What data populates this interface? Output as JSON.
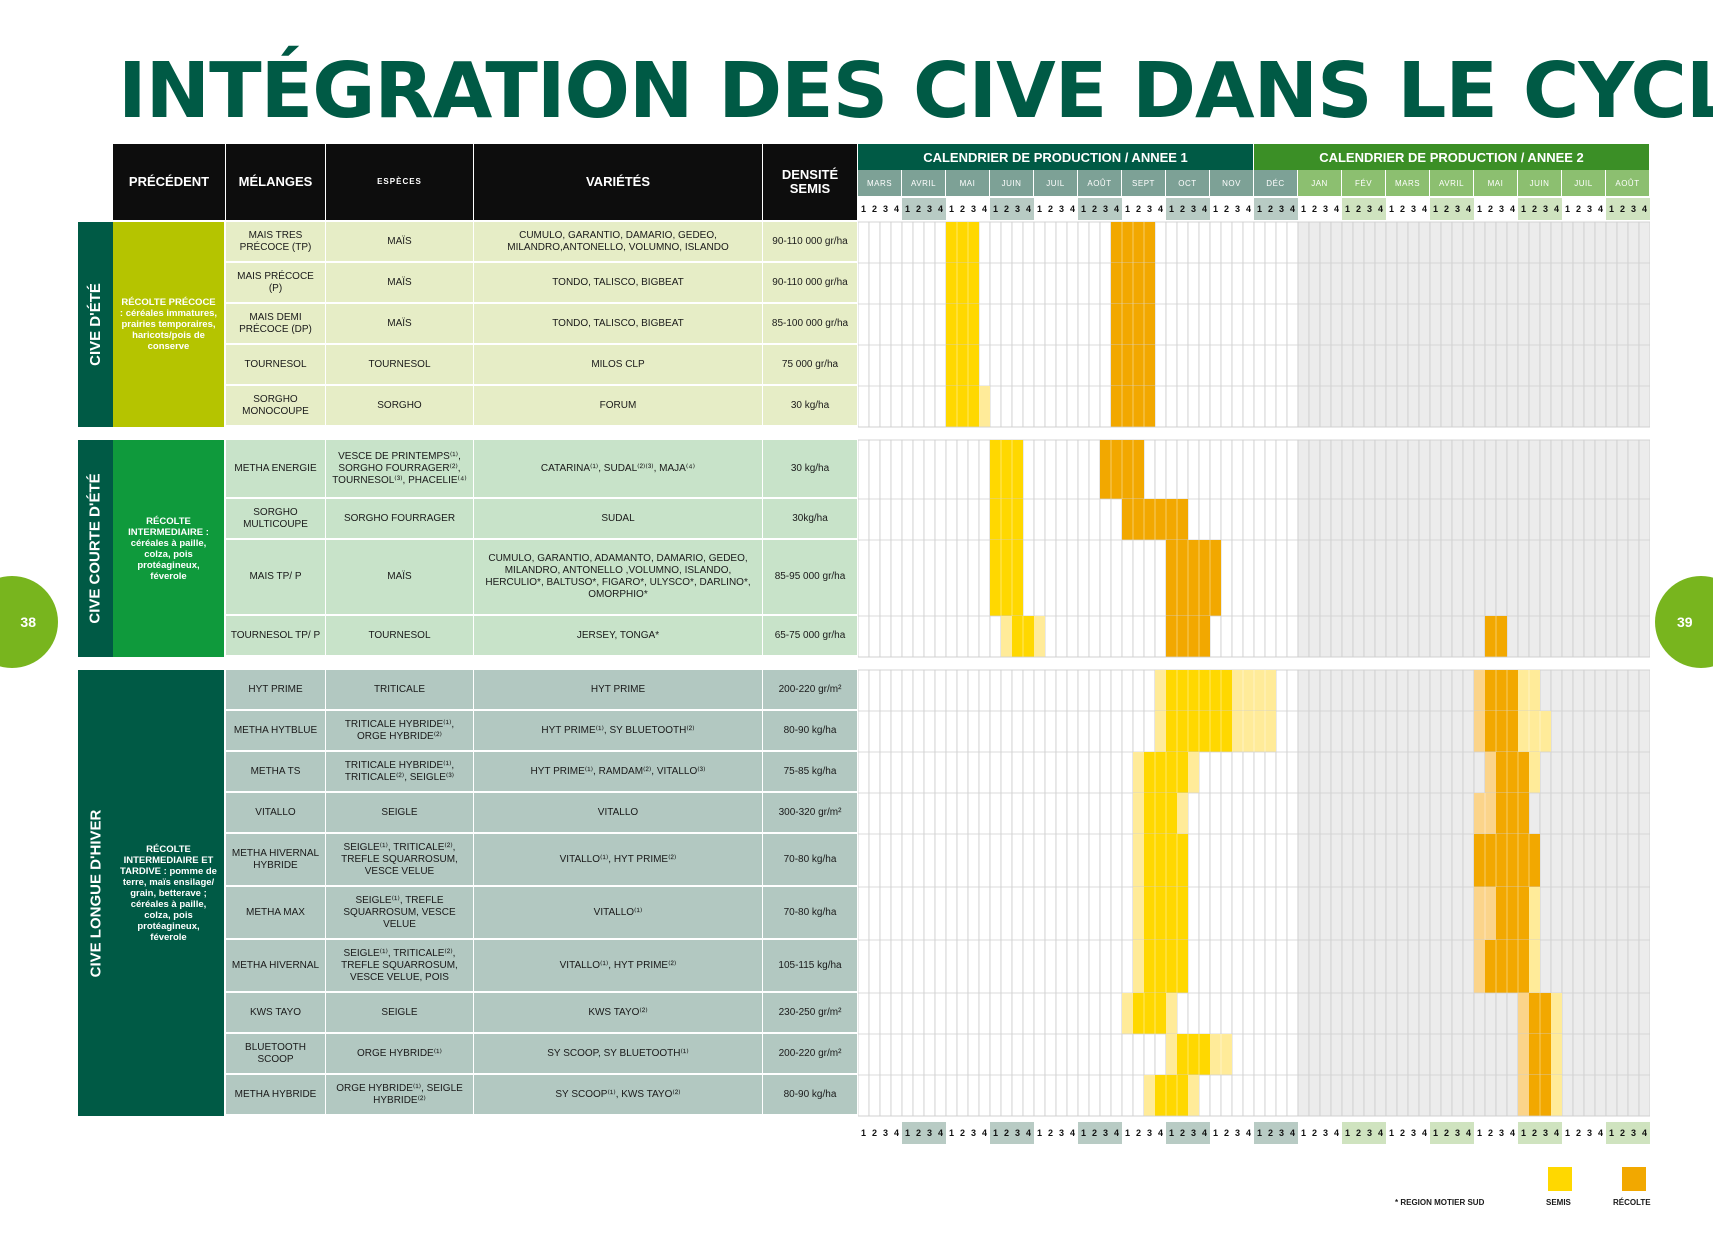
{
  "title": "INTÉGRATION DES CIVE DANS LE CYCLE",
  "page_left": "38",
  "page_right": "39",
  "headers": {
    "precedent": "PRÉCÉDENT",
    "melanges": "MÉLANGES",
    "especes": "ESPÈCES",
    "varietes": "VARIÉTÉS",
    "densite": "DENSITÉ SEMIS",
    "annee1": "CALENDRIER  DE PRODUCTION / ANNEE 1",
    "annee2": "CALENDRIER DE PRODUCTION / ANNEE 2"
  },
  "months_year1": [
    "MARS",
    "AVRIL",
    "MAI",
    "JUIN",
    "JUIL",
    "AOÛT",
    "SEPT",
    "OCT",
    "NOV",
    "DÉC"
  ],
  "months_year2": [
    "JAN",
    "FÉV",
    "MARS",
    "AVRIL",
    "MAI",
    "JUIN",
    "JUIL",
    "AOÛT"
  ],
  "week_labels": [
    "1",
    "2",
    "3",
    "4"
  ],
  "colors": {
    "semis": "#ffd800",
    "recolte": "#f2a800",
    "semis_light": "#ffeb99",
    "recolte_light": "#fbd48a",
    "title_green": "#005a45",
    "annee1_header": "#005a45",
    "annee2_header": "#3b8f26"
  },
  "sections": [
    {
      "band": "CIVE D'ÉTÉ",
      "band_color": "#005a45",
      "precedent_color": "#b5c400",
      "row_color": "#e6edc6",
      "precedent": "RÉCOLTE PRÉCOCE : céréales immatures, prairies temporaires, haricots/pois de conserve",
      "rows": [
        {
          "melange": "MAIS TRES PRÉCOCE (TP)",
          "espece": "MAÏS",
          "varietes": "CUMULO, GARANTIO, DAMARIO, GEDEO, MILANDRO,ANTONELLO, VOLUMNO, ISLANDO",
          "densite": "90-110 000 gr/ha",
          "bars": [
            {
              "type": "semis",
              "start": 8,
              "end": 11
            },
            {
              "type": "recolte",
              "start": 23,
              "end": 27
            }
          ]
        },
        {
          "melange": "MAIS PRÉCOCE (P)",
          "espece": "MAÏS",
          "varietes": "TONDO, TALISCO, BIGBEAT",
          "densite": "90-110 000 gr/ha",
          "bars": [
            {
              "type": "semis",
              "start": 8,
              "end": 11
            },
            {
              "type": "recolte",
              "start": 23,
              "end": 27
            }
          ]
        },
        {
          "melange": "MAIS DEMI PRÉCOCE (DP)",
          "espece": "MAÏS",
          "varietes": "TONDO, TALISCO, BIGBEAT",
          "densite": "85-100 000 gr/ha",
          "bars": [
            {
              "type": "semis",
              "start": 8,
              "end": 11
            },
            {
              "type": "recolte",
              "start": 23,
              "end": 27
            }
          ]
        },
        {
          "melange": "TOURNESOL",
          "espece": "TOURNESOL",
          "varietes": "MILOS CLP",
          "densite": "75 000 gr/ha",
          "bars": [
            {
              "type": "semis",
              "start": 8,
              "end": 11
            },
            {
              "type": "recolte",
              "start": 23,
              "end": 27
            }
          ]
        },
        {
          "melange": "SORGHO MONOCOUPE",
          "espece": "SORGHO",
          "varietes": "FORUM",
          "densite": "30 kg/ha",
          "bars": [
            {
              "type": "semis",
              "start": 8,
              "end": 11
            },
            {
              "type": "semis_light",
              "start": 11,
              "end": 12
            },
            {
              "type": "recolte",
              "start": 23,
              "end": 27
            }
          ]
        }
      ]
    },
    {
      "band": "CIVE COURTE D'ÉTÉ",
      "band_color": "#005a45",
      "precedent_color": "#0f9a3c",
      "row_color": "#c8e3c9",
      "precedent": "RÉCOLTE INTERMEDIAIRE : céréales à paille, colza, pois protéagineux, féverole",
      "rows": [
        {
          "melange": "METHA ENERGIE",
          "espece": "VESCE DE PRINTEMPS⁽¹⁾, SORGHO FOURRAGER⁽²⁾, TOURNESOL⁽³⁾, PHACELIE⁽⁴⁾",
          "varietes": "CATARINA⁽¹⁾, SUDAL⁽²⁾⁽³⁾, MAJA⁽⁴⁾",
          "densite": "30 kg/ha",
          "bars": [
            {
              "type": "semis",
              "start": 12,
              "end": 15
            },
            {
              "type": "recolte",
              "start": 22,
              "end": 26
            }
          ]
        },
        {
          "melange": "SORGHO MULTICOUPE",
          "espece": "SORGHO FOURRAGER",
          "varietes": "SUDAL",
          "densite": "30kg/ha",
          "bars": [
            {
              "type": "semis",
              "start": 12,
              "end": 15
            },
            {
              "type": "recolte",
              "start": 24,
              "end": 30
            }
          ]
        },
        {
          "melange": "MAIS TP/ P",
          "espece": "MAÏS",
          "varietes": "CUMULO, GARANTIO, ADAMANTO, DAMARIO, GEDEO, MILANDRO, ANTONELLO ,VOLUMNO, ISLANDO, HERCULIO*, BALTUSO*, FIGARO*, ULYSCO*, DARLINO*, OMORPHIO*",
          "densite": "85-95 000 gr/ha",
          "bars": [
            {
              "type": "semis",
              "start": 12,
              "end": 15
            },
            {
              "type": "recolte",
              "start": 28,
              "end": 33
            }
          ]
        },
        {
          "melange": "TOURNESOL TP/ P",
          "espece": "TOURNESOL",
          "varietes": "JERSEY, TONGA*",
          "densite": "65-75 000 gr/ha",
          "bars": [
            {
              "type": "semis_light",
              "start": 13,
              "end": 14
            },
            {
              "type": "semis",
              "start": 14,
              "end": 16
            },
            {
              "type": "semis_light",
              "start": 16,
              "end": 17
            },
            {
              "type": "recolte",
              "start": 28,
              "end": 32
            },
            {
              "type": "recolte",
              "start": 57,
              "end": 59
            }
          ]
        }
      ]
    },
    {
      "band": "CIVE LONGUE D'HIVER",
      "band_color": "#005a45",
      "precedent_color": "#005a45",
      "row_color": "#b2c8c1",
      "precedent": "RÉCOLTE INTERMEDIAIRE ET TARDIVE : pomme de terre, maïs ensilage/ grain, betterave ; céréales à paille, colza, pois protéagineux, féverole",
      "rows": [
        {
          "melange": "HYT PRIME",
          "espece": "TRITICALE",
          "varietes": "HYT PRIME",
          "densite": "200-220 gr/m²",
          "bars": [
            {
              "type": "semis_light",
              "start": 27,
              "end": 28
            },
            {
              "type": "semis",
              "start": 28,
              "end": 34
            },
            {
              "type": "semis_light",
              "start": 34,
              "end": 38
            },
            {
              "type": "recolte_light",
              "start": 56,
              "end": 57
            },
            {
              "type": "recolte",
              "start": 57,
              "end": 60
            },
            {
              "type": "semis_light",
              "start": 60,
              "end": 62
            }
          ]
        },
        {
          "melange": "METHA HYTBLUE",
          "espece": "TRITICALE HYBRIDE⁽¹⁾, ORGE HYBRIDE⁽²⁾",
          "varietes": "HYT PRIME⁽¹⁾, SY BLUETOOTH⁽²⁾",
          "densite": "80-90 kg/ha",
          "bars": [
            {
              "type": "semis_light",
              "start": 27,
              "end": 28
            },
            {
              "type": "semis",
              "start": 28,
              "end": 34
            },
            {
              "type": "semis_light",
              "start": 34,
              "end": 38
            },
            {
              "type": "recolte_light",
              "start": 56,
              "end": 57
            },
            {
              "type": "recolte",
              "start": 57,
              "end": 60
            },
            {
              "type": "semis_light",
              "start": 60,
              "end": 63
            }
          ]
        },
        {
          "melange": "METHA TS",
          "espece": "TRITICALE HYBRIDE⁽¹⁾, TRITICALE⁽²⁾, SEIGLE⁽³⁾",
          "varietes": "HYT PRIME⁽¹⁾, RAMDAM⁽²⁾, VITALLO⁽³⁾",
          "densite": "75-85 kg/ha",
          "bars": [
            {
              "type": "semis_light",
              "start": 25,
              "end": 26
            },
            {
              "type": "semis",
              "start": 26,
              "end": 30
            },
            {
              "type": "semis_light",
              "start": 30,
              "end": 31
            },
            {
              "type": "recolte_light",
              "start": 57,
              "end": 58
            },
            {
              "type": "recolte",
              "start": 58,
              "end": 61
            },
            {
              "type": "semis_light",
              "start": 61,
              "end": 62
            }
          ]
        },
        {
          "melange": "VITALLO",
          "espece": "SEIGLE",
          "varietes": "VITALLO",
          "densite": "300-320 gr/m²",
          "bars": [
            {
              "type": "semis_light",
              "start": 25,
              "end": 26
            },
            {
              "type": "semis",
              "start": 26,
              "end": 29
            },
            {
              "type": "semis_light",
              "start": 29,
              "end": 30
            },
            {
              "type": "recolte_light",
              "start": 56,
              "end": 58
            },
            {
              "type": "recolte",
              "start": 58,
              "end": 61
            }
          ]
        },
        {
          "melange": "METHA HIVERNAL HYBRIDE",
          "espece": "SEIGLE⁽¹⁾, TRITICALE⁽²⁾, TREFLE SQUARROSUM, VESCE VELUE",
          "varietes": "VITALLO⁽¹⁾, HYT PRIME⁽²⁾",
          "densite": "70-80 kg/ha",
          "bars": [
            {
              "type": "semis_light",
              "start": 25,
              "end": 26
            },
            {
              "type": "semis",
              "start": 26,
              "end": 30
            },
            {
              "type": "recolte",
              "start": 56,
              "end": 62
            }
          ]
        },
        {
          "melange": "METHA MAX",
          "espece": "SEIGLE⁽¹⁾, TREFLE SQUARROSUM, VESCE VELUE",
          "varietes": "VITALLO⁽¹⁾",
          "densite": "70-80 kg/ha",
          "bars": [
            {
              "type": "semis_light",
              "start": 25,
              "end": 26
            },
            {
              "type": "semis",
              "start": 26,
              "end": 30
            },
            {
              "type": "recolte_light",
              "start": 56,
              "end": 58
            },
            {
              "type": "recolte",
              "start": 58,
              "end": 61
            },
            {
              "type": "semis_light",
              "start": 61,
              "end": 62
            }
          ]
        },
        {
          "melange": "METHA HIVERNAL",
          "espece": "SEIGLE⁽¹⁾, TRITICALE⁽²⁾, TREFLE SQUARROSUM, VESCE VELUE, POIS",
          "varietes": "VITALLO⁽¹⁾, HYT PRIME⁽²⁾",
          "densite": "105-115 kg/ha",
          "bars": [
            {
              "type": "semis_light",
              "start": 25,
              "end": 26
            },
            {
              "type": "semis",
              "start": 26,
              "end": 30
            },
            {
              "type": "recolte_light",
              "start": 56,
              "end": 57
            },
            {
              "type": "recolte",
              "start": 57,
              "end": 61
            },
            {
              "type": "semis_light",
              "start": 61,
              "end": 62
            }
          ]
        },
        {
          "melange": "KWS TAYO",
          "espece": "SEIGLE",
          "varietes": "KWS TAYO⁽²⁾",
          "densite": "230-250 gr/m²",
          "bars": [
            {
              "type": "semis_light",
              "start": 24,
              "end": 25
            },
            {
              "type": "semis",
              "start": 25,
              "end": 28
            },
            {
              "type": "semis_light",
              "start": 28,
              "end": 29
            },
            {
              "type": "recolte_light",
              "start": 60,
              "end": 61
            },
            {
              "type": "recolte",
              "start": 61,
              "end": 63
            },
            {
              "type": "semis_light",
              "start": 63,
              "end": 64
            }
          ]
        },
        {
          "melange": "BLUETOOTH SCOOP",
          "espece": "ORGE HYBRIDE⁽¹⁾",
          "varietes": "SY SCOOP, SY BLUETOOTH⁽¹⁾",
          "densite": "200-220 gr/m²",
          "bars": [
            {
              "type": "semis_light",
              "start": 28,
              "end": 29
            },
            {
              "type": "semis",
              "start": 29,
              "end": 32
            },
            {
              "type": "semis_light",
              "start": 32,
              "end": 34
            },
            {
              "type": "recolte_light",
              "start": 60,
              "end": 61
            },
            {
              "type": "recolte",
              "start": 61,
              "end": 63
            },
            {
              "type": "semis_light",
              "start": 63,
              "end": 64
            }
          ]
        },
        {
          "melange": "METHA HYBRIDE",
          "espece": "ORGE HYBRIDE⁽¹⁾, SEIGLE HYBRIDE⁽²⁾",
          "varietes": "SY SCOOP⁽¹⁾, KWS TAYO⁽²⁾",
          "densite": "80-90 kg/ha",
          "bars": [
            {
              "type": "semis_light",
              "start": 26,
              "end": 27
            },
            {
              "type": "semis",
              "start": 27,
              "end": 30
            },
            {
              "type": "semis_light",
              "start": 30,
              "end": 31
            },
            {
              "type": "recolte_light",
              "start": 60,
              "end": 61
            },
            {
              "type": "recolte",
              "start": 61,
              "end": 63
            },
            {
              "type": "semis_light",
              "start": 63,
              "end": 64
            }
          ]
        }
      ]
    }
  ],
  "legend": {
    "note": "* REGION MOTIER SUD",
    "semis": "SEMIS",
    "recolte": "RÉCOLTE"
  }
}
